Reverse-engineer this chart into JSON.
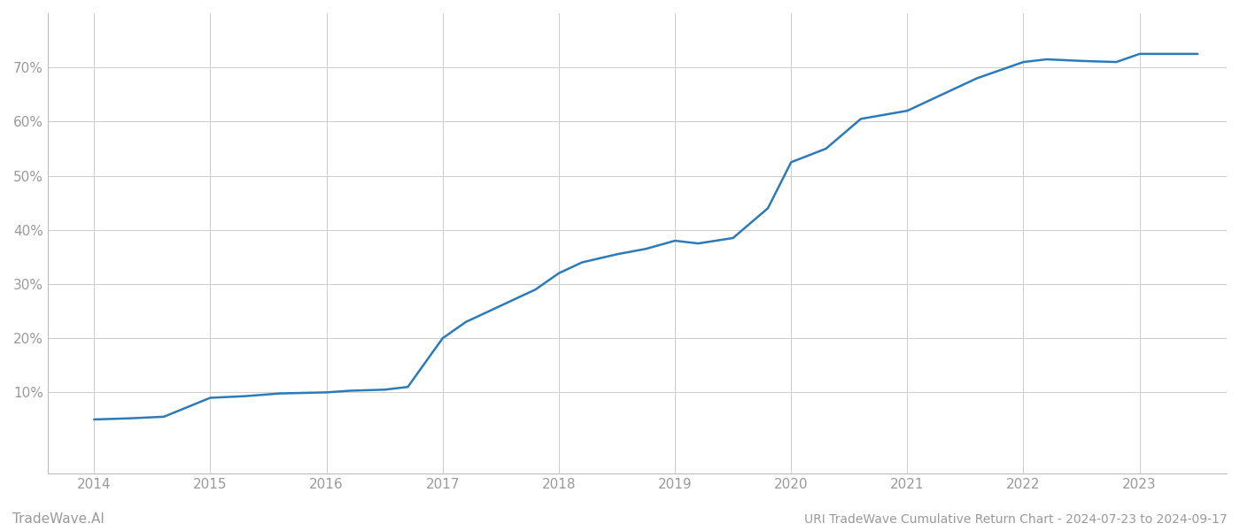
{
  "title": "URI TradeWave Cumulative Return Chart - 2024-07-23 to 2024-09-17",
  "watermark": "TradeWave.AI",
  "line_color": "#2b7bba",
  "background_color": "#ffffff",
  "grid_color": "#cccccc",
  "x_values": [
    2014.0,
    2014.3,
    2014.6,
    2015.0,
    2015.3,
    2015.6,
    2016.0,
    2016.2,
    2016.5,
    2016.7,
    2017.0,
    2017.2,
    2017.5,
    2017.8,
    2018.0,
    2018.2,
    2018.5,
    2018.75,
    2019.0,
    2019.2,
    2019.5,
    2019.8,
    2020.0,
    2020.3,
    2020.6,
    2021.0,
    2021.3,
    2021.6,
    2022.0,
    2022.2,
    2022.5,
    2022.8,
    2023.0,
    2023.5
  ],
  "y_values": [
    5,
    5.2,
    5.5,
    9.0,
    9.3,
    9.8,
    10.0,
    10.3,
    10.5,
    11.0,
    20.0,
    23.0,
    26.0,
    29.0,
    32.0,
    34.0,
    35.5,
    36.5,
    38.0,
    37.5,
    38.5,
    44.0,
    52.5,
    55.0,
    60.5,
    62.0,
    65.0,
    68.0,
    71.0,
    71.5,
    71.2,
    71.0,
    72.5,
    72.5
  ],
  "xlim": [
    2013.6,
    2023.75
  ],
  "ylim": [
    -5,
    80
  ],
  "yticks": [
    10,
    20,
    30,
    40,
    50,
    60,
    70
  ],
  "ytick_labels": [
    "10%",
    "20%",
    "30%",
    "40%",
    "50%",
    "60%",
    "70%"
  ],
  "xticks": [
    2014,
    2015,
    2016,
    2017,
    2018,
    2019,
    2020,
    2021,
    2022,
    2023
  ],
  "xtick_labels": [
    "2014",
    "2015",
    "2016",
    "2017",
    "2018",
    "2019",
    "2020",
    "2021",
    "2022",
    "2023"
  ],
  "spine_color": "#bbbbbb",
  "tick_label_color": "#999999",
  "axis_label_fontsize": 11,
  "title_fontsize": 10,
  "watermark_fontsize": 11,
  "line_width": 1.8
}
